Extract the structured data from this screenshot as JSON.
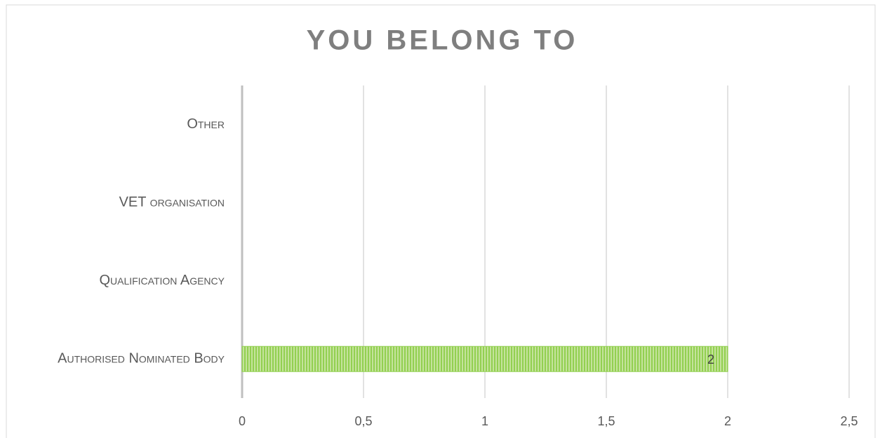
{
  "chart_data": {
    "type": "bar",
    "orientation": "horizontal",
    "title": "YOU BELONG TO",
    "categories": [
      "Authorised Nominated Body",
      "Qualification Agency",
      "VET organisation",
      "Other"
    ],
    "values": [
      2,
      0,
      0,
      0
    ],
    "color": "#92d050",
    "xlim": [
      0,
      2.5
    ],
    "xticks": [
      0,
      {
        "value": 0.5,
        "label": "0,5"
      },
      1,
      {
        "value": 1.5,
        "label": "1,5"
      },
      2,
      {
        "value": 2.5,
        "label": "2,5"
      }
    ],
    "grid": true
  }
}
